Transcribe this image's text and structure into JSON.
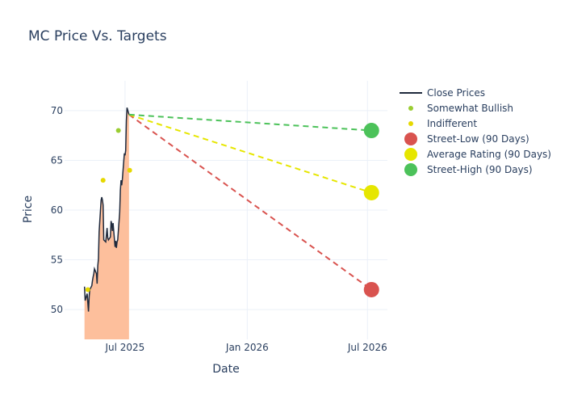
{
  "chart_data": {
    "type": "line",
    "title": "MC Price Vs. Targets",
    "xlabel": "Date",
    "ylabel": "Price",
    "xlim": [
      "2025-04-01",
      "2026-07-31"
    ],
    "ylim": [
      47,
      73
    ],
    "x_ticks": [
      {
        "date": "2025-07-01",
        "label": "Jul 2025"
      },
      {
        "date": "2026-01-01",
        "label": "Jan 2026"
      },
      {
        "date": "2026-07-01",
        "label": "Jul 2026"
      }
    ],
    "y_ticks": [
      50,
      55,
      60,
      65,
      70
    ],
    "grid": true,
    "legend_position": "right",
    "close_prices": {
      "name": "Close Prices",
      "color": "#1f2a3d",
      "fill_color": "#fdbf9c",
      "points": [
        [
          "2025-05-01",
          52.3
        ],
        [
          "2025-05-02",
          50.9
        ],
        [
          "2025-05-05",
          51.6
        ],
        [
          "2025-05-06",
          50.7
        ],
        [
          "2025-05-07",
          49.8
        ],
        [
          "2025-05-08",
          51.3
        ],
        [
          "2025-05-09",
          52.0
        ],
        [
          "2025-05-12",
          52.4
        ],
        [
          "2025-05-13",
          52.9
        ],
        [
          "2025-05-14",
          53.3
        ],
        [
          "2025-05-15",
          53.6
        ],
        [
          "2025-05-16",
          54.1
        ],
        [
          "2025-05-19",
          53.6
        ],
        [
          "2025-05-20",
          52.6
        ],
        [
          "2025-05-21",
          54.4
        ],
        [
          "2025-05-22",
          55.1
        ],
        [
          "2025-05-23",
          57.8
        ],
        [
          "2025-05-26",
          61.0
        ],
        [
          "2025-05-27",
          61.3
        ],
        [
          "2025-05-28",
          61.0
        ],
        [
          "2025-05-29",
          60.5
        ],
        [
          "2025-05-30",
          57.0
        ],
        [
          "2025-06-02",
          56.8
        ],
        [
          "2025-06-03",
          57.5
        ],
        [
          "2025-06-04",
          58.2
        ],
        [
          "2025-06-05",
          57.2
        ],
        [
          "2025-06-06",
          57.0
        ],
        [
          "2025-06-09",
          57.3
        ],
        [
          "2025-06-10",
          58.9
        ],
        [
          "2025-06-11",
          58.6
        ],
        [
          "2025-06-12",
          57.9
        ],
        [
          "2025-06-13",
          58.7
        ],
        [
          "2025-06-16",
          56.3
        ],
        [
          "2025-06-17",
          56.9
        ],
        [
          "2025-06-18",
          56.2
        ],
        [
          "2025-06-19",
          56.8
        ],
        [
          "2025-06-20",
          57.0
        ],
        [
          "2025-06-23",
          59.8
        ],
        [
          "2025-06-24",
          62.0
        ],
        [
          "2025-06-25",
          63.0
        ],
        [
          "2025-06-26",
          62.5
        ],
        [
          "2025-06-27",
          63.1
        ],
        [
          "2025-06-30",
          65.7
        ],
        [
          "2025-07-01",
          65.5
        ],
        [
          "2025-07-02",
          66.0
        ],
        [
          "2025-07-03",
          69.0
        ],
        [
          "2025-07-04",
          70.3
        ],
        [
          "2025-07-07",
          69.6
        ]
      ]
    },
    "analyst_ratings": [
      {
        "name": "Somewhat Bullish",
        "color": "#9acd32",
        "points": [
          [
            "2025-06-21",
            68.0
          ]
        ]
      },
      {
        "name": "Indifferent",
        "color": "#e6d800",
        "points": [
          [
            "2025-05-06",
            52.0
          ],
          [
            "2025-05-29",
            63.0
          ],
          [
            "2025-07-08",
            64.0
          ]
        ]
      }
    ],
    "targets": [
      {
        "name": "Street-Low (90 Days)",
        "color": "#d9534f",
        "start": [
          "2025-07-07",
          69.6
        ],
        "end": [
          "2026-07-07",
          52.0
        ]
      },
      {
        "name": "Average Rating (90 Days)",
        "color": "#e6e600",
        "start": [
          "2025-07-07",
          69.6
        ],
        "end": [
          "2026-07-07",
          61.75
        ]
      },
      {
        "name": "Street-High (90 Days)",
        "color": "#4cc25a",
        "start": [
          "2025-07-07",
          69.6
        ],
        "end": [
          "2026-07-07",
          68.0
        ]
      }
    ]
  }
}
